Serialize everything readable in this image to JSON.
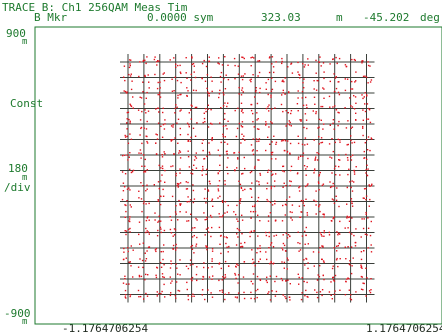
{
  "header": {
    "title": "TRACE B: Ch1 256QAM Meas Tim",
    "marker_label": "B Mkr",
    "marker_symbol": "0.0000 sym",
    "marker_value_1": "323.03",
    "marker_unit_1": "m",
    "marker_value_2": "-45.202",
    "marker_unit_2": "deg"
  },
  "left_axis": {
    "top_value": "900",
    "top_unit": "m",
    "mode": "Const",
    "scale_value": "180",
    "scale_unit": "m",
    "scale_per": "/div",
    "bottom_value": "-900",
    "bottom_unit": "m"
  },
  "bottom_axis": {
    "left_value": "-1.1764706254",
    "right_value": "1.1764706254"
  },
  "colors": {
    "background": "#ffffff",
    "grid": "#3a3f3a",
    "points": "#e0141e",
    "text": "#1e7a2e"
  },
  "chart_data": {
    "type": "scatter",
    "title": "TRACE B: Ch1 256QAM Meas Tim",
    "xlim": [
      -1.1764706254,
      1.1764706254
    ],
    "ylim": [
      -0.9,
      0.9
    ],
    "ylabel_scale": "180 m/div",
    "grid": "16x16 constellation decision lines",
    "constellation_levels": [
      -15,
      -13,
      -11,
      -9,
      -7,
      -5,
      -3,
      -1,
      1,
      3,
      5,
      7,
      9,
      11,
      13,
      15
    ],
    "points_per_symbol": 6,
    "point_spread": 0.35
  }
}
